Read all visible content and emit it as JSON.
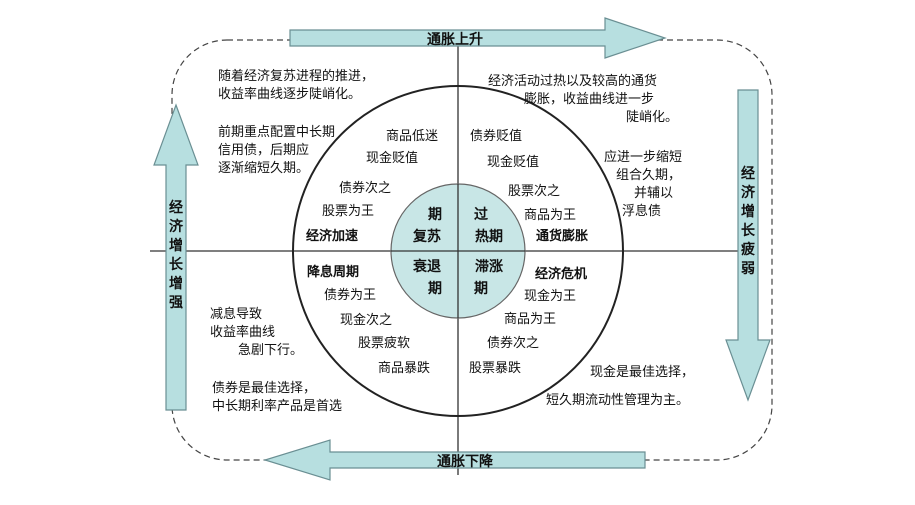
{
  "arrows": {
    "top": "通胀上升",
    "bottom": "通胀下降",
    "left": [
      "经",
      "济",
      "增",
      "长",
      "增",
      "强"
    ],
    "right": [
      "经",
      "济",
      "增",
      "长",
      "疲",
      "弱"
    ]
  },
  "colors": {
    "arrow_fill": "#b7dfe0",
    "arrow_stroke": "#6a8f93",
    "inner_circle": "#c8e6e6"
  },
  "corners": {
    "top_left": {
      "p1": [
        "随着经济复苏进程的推进，",
        "收益率曲线逐步陡峭化。"
      ],
      "p2": [
        "前期重点配置中长期",
        "信用债，后期应",
        "逐渐缩短久期。"
      ]
    },
    "top_right": {
      "p1": [
        "经济活动过热以及较高的通货",
        "膨胀，收益曲线进一步",
        "陡峭化。"
      ],
      "p2": [
        "应进一步缩短",
        "组合久期，",
        "并辅以",
        "浮息债"
      ]
    },
    "bottom_left": {
      "p1": [
        "减息导致",
        "收益率曲线",
        "急剧下行。"
      ],
      "p2": [
        "债券是最佳选择，",
        "中长期利率产品是首选"
      ]
    },
    "bottom_right": {
      "p1": [
        "现金是最佳选择，",
        "短久期流动性管理为主。"
      ]
    }
  },
  "ring": {
    "tl": [
      "商品低迷",
      "现金贬值",
      "债券次之",
      "股票为王"
    ],
    "tl_name": "经济加速",
    "tr": [
      "债券贬值",
      "现金贬值",
      "股票次之",
      "商品为王"
    ],
    "tr_name": "通货膨胀",
    "bl_name": "降息周期",
    "bl": [
      "债券为王",
      "现金次之",
      "股票疲软",
      "商品暴跌"
    ],
    "br_name": "经济危机",
    "br": [
      "现金为王",
      "商品为王",
      "债券次之",
      "股票暴跌"
    ]
  },
  "center": {
    "tl": [
      "期",
      "复苏"
    ],
    "tr": [
      "过",
      "热期"
    ],
    "bl": [
      "衰退",
      "期"
    ],
    "br": [
      "滞涨",
      "期"
    ]
  }
}
